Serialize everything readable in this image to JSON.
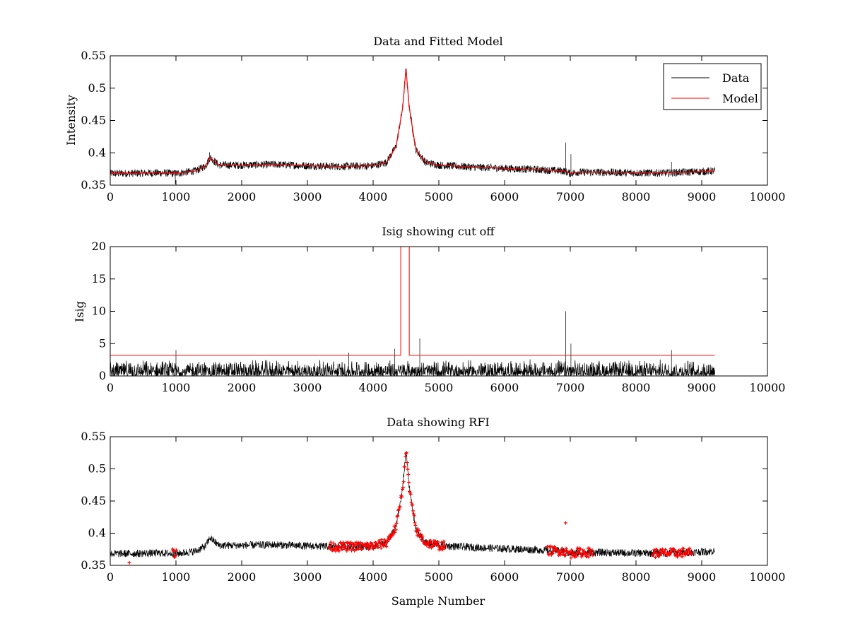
{
  "chart_data": [
    {
      "type": "line",
      "title": "Data and Fitted Model",
      "xlabel": "",
      "ylabel": "Intensity",
      "xlim": [
        0,
        10000
      ],
      "ylim": [
        0.35,
        0.55
      ],
      "xticks": [
        0,
        1000,
        2000,
        3000,
        4000,
        5000,
        6000,
        7000,
        8000,
        9000,
        10000
      ],
      "xtick_labels": [
        "0",
        "1000",
        "2000",
        "3000",
        "4000",
        "5000",
        "6000",
        "7000",
        "8000",
        "9000",
        "10000"
      ],
      "yticks": [
        0.35,
        0.4,
        0.45,
        0.5,
        0.55
      ],
      "ytick_labels": [
        "0.35",
        "0.4",
        "0.45",
        "0.5",
        "0.55"
      ],
      "legend": {
        "position": "top-right",
        "entries": [
          "Data",
          "Model"
        ]
      },
      "series": [
        {
          "name": "Data",
          "color": "#000000",
          "style": "noisy-line",
          "x": [
            0,
            800,
            1000,
            1300,
            1450,
            1520,
            1650,
            2000,
            2500,
            3000,
            3500,
            4000,
            4200,
            4350,
            4450,
            4500,
            4550,
            4650,
            4800,
            5000,
            5500,
            6000,
            6500,
            6900,
            7000,
            7100,
            7500,
            8000,
            8500,
            9000,
            9200
          ],
          "values": [
            0.368,
            0.369,
            0.368,
            0.372,
            0.38,
            0.393,
            0.381,
            0.381,
            0.382,
            0.38,
            0.379,
            0.38,
            0.385,
            0.41,
            0.47,
            0.53,
            0.47,
            0.405,
            0.385,
            0.381,
            0.378,
            0.376,
            0.374,
            0.372,
            0.368,
            0.37,
            0.37,
            0.369,
            0.369,
            0.371,
            0.372
          ],
          "spikes": [
            {
              "x": 1510,
              "value": 0.401
            },
            {
              "x": 4700,
              "value": 0.397
            },
            {
              "x": 6930,
              "value": 0.416
            },
            {
              "x": 7010,
              "value": 0.398
            },
            {
              "x": 8540,
              "value": 0.386
            },
            {
              "x": 990,
              "value": 0.352
            }
          ]
        },
        {
          "name": "Model",
          "color": "#ff0000",
          "style": "line",
          "x": [
            0,
            800,
            1000,
            1300,
            1450,
            1520,
            1650,
            2000,
            2500,
            3000,
            3500,
            4000,
            4200,
            4350,
            4450,
            4500,
            4550,
            4650,
            4800,
            5000,
            5500,
            6000,
            6500,
            6900,
            7000,
            7100,
            7500,
            8000,
            8500,
            9000,
            9200
          ],
          "values": [
            0.368,
            0.369,
            0.368,
            0.372,
            0.38,
            0.393,
            0.381,
            0.381,
            0.382,
            0.38,
            0.379,
            0.38,
            0.385,
            0.41,
            0.47,
            0.53,
            0.47,
            0.405,
            0.385,
            0.381,
            0.378,
            0.376,
            0.374,
            0.372,
            0.368,
            0.37,
            0.37,
            0.369,
            0.369,
            0.371,
            0.372
          ]
        }
      ]
    },
    {
      "type": "line",
      "title": "Isig showing cut off",
      "xlabel": "",
      "ylabel": "Isig",
      "xlim": [
        0,
        10000
      ],
      "ylim": [
        0,
        20
      ],
      "xticks": [
        0,
        1000,
        2000,
        3000,
        4000,
        5000,
        6000,
        7000,
        8000,
        9000,
        10000
      ],
      "xtick_labels": [
        "0",
        "1000",
        "2000",
        "3000",
        "4000",
        "5000",
        "6000",
        "7000",
        "8000",
        "9000",
        "10000"
      ],
      "yticks": [
        0,
        5,
        10,
        15,
        20
      ],
      "ytick_labels": [
        "0",
        "5",
        "10",
        "15",
        "20"
      ],
      "series": [
        {
          "name": "Isig",
          "color": "#000000",
          "style": "noise-floor",
          "x_range": [
            0,
            9200
          ],
          "floor": 0,
          "typical_max": 2,
          "spikes": [
            {
              "x": 4330,
              "value": 4.2
            },
            {
              "x": 4710,
              "value": 5.8
            },
            {
              "x": 6930,
              "value": 10.0
            },
            {
              "x": 7010,
              "value": 5.0
            },
            {
              "x": 8540,
              "value": 4.0
            },
            {
              "x": 1000,
              "value": 4.0
            },
            {
              "x": 3630,
              "value": 3.6
            }
          ]
        },
        {
          "name": "cut off",
          "color": "#ff0000",
          "style": "line",
          "x": [
            0,
            4420,
            4420,
            4550,
            4550,
            9200
          ],
          "values": [
            3.2,
            3.2,
            20,
            20,
            3.2,
            3.2
          ]
        }
      ]
    },
    {
      "type": "scatter",
      "title": "Data showing RFI",
      "xlabel": "Sample Number",
      "ylabel": "",
      "xlim": [
        0,
        10000
      ],
      "ylim": [
        0.35,
        0.55
      ],
      "xticks": [
        0,
        1000,
        2000,
        3000,
        4000,
        5000,
        6000,
        7000,
        8000,
        9000,
        10000
      ],
      "xtick_labels": [
        "0",
        "1000",
        "2000",
        "3000",
        "4000",
        "5000",
        "6000",
        "7000",
        "8000",
        "9000",
        "10000"
      ],
      "yticks": [
        0.35,
        0.4,
        0.45,
        0.5,
        0.55
      ],
      "ytick_labels": [
        "0.35",
        "0.4",
        "0.45",
        "0.5",
        "0.55"
      ],
      "series": [
        {
          "name": "Data",
          "color": "#000000",
          "style": "noisy-line",
          "x": [
            0,
            800,
            1000,
            1300,
            1450,
            1520,
            1650,
            2000,
            2500,
            3000,
            3500,
            4000,
            4200,
            4350,
            4450,
            4500,
            4550,
            4650,
            4800,
            5000,
            5500,
            6000,
            6500,
            6900,
            7000,
            7100,
            7500,
            8000,
            8500,
            9000,
            9200
          ],
          "values": [
            0.368,
            0.369,
            0.368,
            0.372,
            0.38,
            0.393,
            0.381,
            0.381,
            0.382,
            0.38,
            0.379,
            0.38,
            0.385,
            0.41,
            0.47,
            0.53,
            0.47,
            0.405,
            0.385,
            0.381,
            0.378,
            0.376,
            0.374,
            0.372,
            0.368,
            0.37,
            0.37,
            0.369,
            0.369,
            0.371,
            0.372
          ]
        },
        {
          "name": "RFI",
          "color": "#ff0000",
          "style": "markers",
          "flagged_ranges": [
            [
              3330,
              5100
            ],
            [
              6650,
              7350
            ],
            [
              8250,
              8850
            ],
            [
              950,
              1010
            ]
          ],
          "isolated_points": [
            {
              "x": 290,
              "value": 0.354
            },
            {
              "x": 6930,
              "value": 0.416
            }
          ]
        }
      ]
    }
  ]
}
